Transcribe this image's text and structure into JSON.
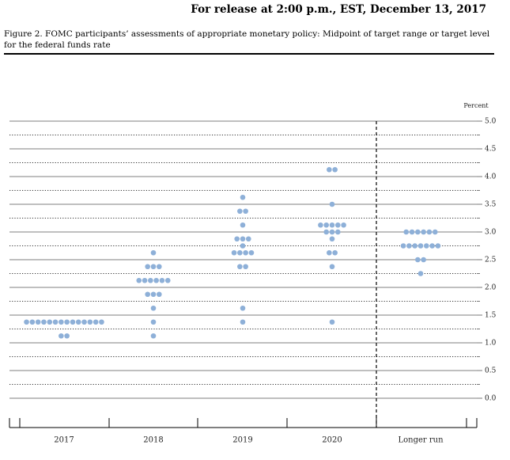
{
  "header": {
    "release": "For release at 2:00 p.m., EST, December 13, 2017"
  },
  "chart_data": {
    "type": "dot",
    "title": "Figure 2. FOMC participants’ assessments of appropriate monetary policy: Midpoint of target range or target level for the federal funds rate",
    "y_label": "Percent",
    "categories": [
      "2017",
      "2018",
      "2019",
      "2020",
      "Longer run"
    ],
    "values": [
      [
        1.375,
        1.375,
        1.375,
        1.375,
        1.375,
        1.375,
        1.375,
        1.375,
        1.375,
        1.375,
        1.375,
        1.375,
        1.375,
        1.375,
        1.125,
        1.125
      ],
      [
        2.625,
        2.375,
        2.375,
        2.375,
        2.125,
        2.125,
        2.125,
        2.125,
        2.125,
        2.125,
        1.875,
        1.875,
        1.875,
        1.625,
        1.375,
        1.125
      ],
      [
        3.625,
        3.375,
        3.375,
        3.125,
        2.875,
        2.875,
        2.875,
        2.75,
        2.625,
        2.625,
        2.625,
        2.625,
        2.375,
        2.375,
        1.625,
        1.375
      ],
      [
        4.125,
        4.125,
        3.5,
        3.125,
        3.125,
        3.125,
        3.125,
        3.125,
        3.0,
        3.0,
        3.0,
        2.875,
        2.625,
        2.625,
        2.375,
        1.375
      ],
      [
        3.0,
        3.0,
        3.0,
        3.0,
        3.0,
        3.0,
        2.75,
        2.75,
        2.75,
        2.75,
        2.75,
        2.75,
        2.75,
        2.5,
        2.5,
        2.25
      ]
    ],
    "color": "#8eb0d8",
    "ylim": [
      0,
      5
    ],
    "yticks": [
      {
        "value": 0,
        "label": "0.0"
      },
      0.5,
      {
        "value": 1,
        "label": "1.0"
      },
      1.5,
      {
        "value": 2,
        "label": "2.0"
      },
      2.5,
      {
        "value": 3,
        "label": "3.0"
      },
      3.5,
      {
        "value": 4,
        "label": "4.0"
      },
      4.5,
      {
        "value": 5,
        "label": "5.0"
      }
    ],
    "yminorticks": [
      0.25,
      0.75,
      1.25,
      1.75,
      2.25,
      2.75,
      3.25,
      3.75,
      4.25,
      4.75
    ]
  }
}
